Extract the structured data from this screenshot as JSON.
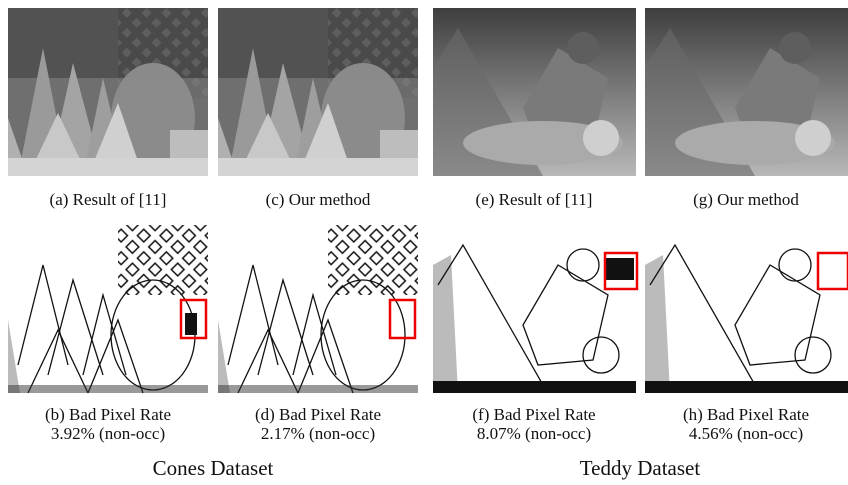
{
  "panels": [
    {
      "caption": "(a) Result of [11]"
    },
    {
      "caption": "(c) Our method"
    },
    {
      "caption": "(e) Result of [11]"
    },
    {
      "caption": "(g) Our method"
    },
    {
      "caption": "(b) Bad Pixel Rate",
      "rate": "3.92% (non-occ)"
    },
    {
      "caption": "(d) Bad Pixel Rate",
      "rate": "2.17% (non-occ)"
    },
    {
      "caption": "(f) Bad Pixel Rate",
      "rate": "8.07% (non-occ)"
    },
    {
      "caption": "(h) Bad Pixel Rate",
      "rate": "4.56% (non-occ)"
    }
  ],
  "datasets": [
    "Cones Dataset",
    "Teddy Dataset"
  ]
}
